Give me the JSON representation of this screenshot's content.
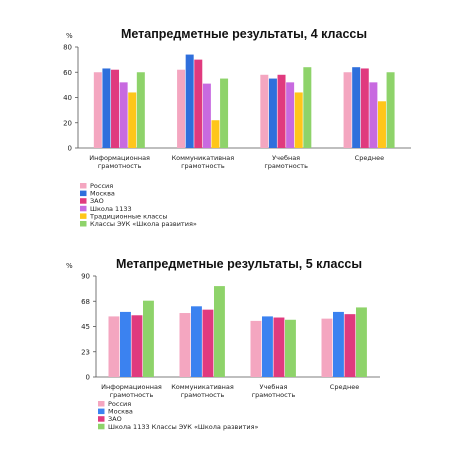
{
  "chart_data": [
    {
      "type": "bar",
      "title": "Метапредметные результаты, 4 классы",
      "ylabel": "%",
      "ylim": [
        0,
        80
      ],
      "yticks": [
        "0",
        "20",
        "40",
        "60",
        "80"
      ],
      "grid": false,
      "legend_position": "bottom-left",
      "categories": [
        [
          "Информационная",
          "грамотность"
        ],
        [
          "Коммуникативная",
          "грамотность"
        ],
        [
          "Учебная",
          "грамотность"
        ],
        [
          "Среднее"
        ]
      ],
      "series": [
        {
          "name": "Россия",
          "color": "#f4a6c0",
          "values": [
            60,
            62,
            58,
            60
          ]
        },
        {
          "name": "Москва",
          "color": "#2f6fdc",
          "values": [
            63,
            74,
            55,
            64
          ]
        },
        {
          "name": "ЗАО",
          "color": "#e03a7e",
          "values": [
            62,
            70,
            58,
            63
          ]
        },
        {
          "name": "Школа 1133",
          "color": "#c86ae0",
          "values": [
            52,
            51,
            52,
            52
          ]
        },
        {
          "name": "Традиционные классы",
          "color": "#ffc61a",
          "values": [
            44,
            22,
            44,
            37
          ]
        },
        {
          "name": "Классы ЭУК «Школа развития»",
          "color": "#8ed36a",
          "values": [
            60,
            55,
            64,
            60
          ]
        }
      ]
    },
    {
      "type": "bar",
      "title": "Метапредметные результаты, 5 классы",
      "ylabel": "%",
      "ylim": [
        0,
        90
      ],
      "yticks": [
        "0",
        "23",
        "45",
        "68",
        "90"
      ],
      "grid": false,
      "legend_position": "bottom-left",
      "categories": [
        [
          "Информационная",
          "грамотность"
        ],
        [
          "Коммуникативная",
          "грамотность"
        ],
        [
          "Учебная",
          "грамотность"
        ],
        [
          "Среднее"
        ]
      ],
      "series": [
        {
          "name": "Россия",
          "color": "#f4a6c0",
          "values": [
            54,
            57,
            50,
            52
          ]
        },
        {
          "name": "Москва",
          "color": "#3b82f0",
          "values": [
            58,
            63,
            54,
            58
          ]
        },
        {
          "name": "ЗАО",
          "color": "#e03a7e",
          "values": [
            55,
            60,
            53,
            56
          ]
        },
        {
          "name": "Школа 1133 Классы ЭУК «Школа развития»",
          "color": "#8ed36a",
          "values": [
            68,
            81,
            51,
            62
          ]
        }
      ]
    }
  ]
}
